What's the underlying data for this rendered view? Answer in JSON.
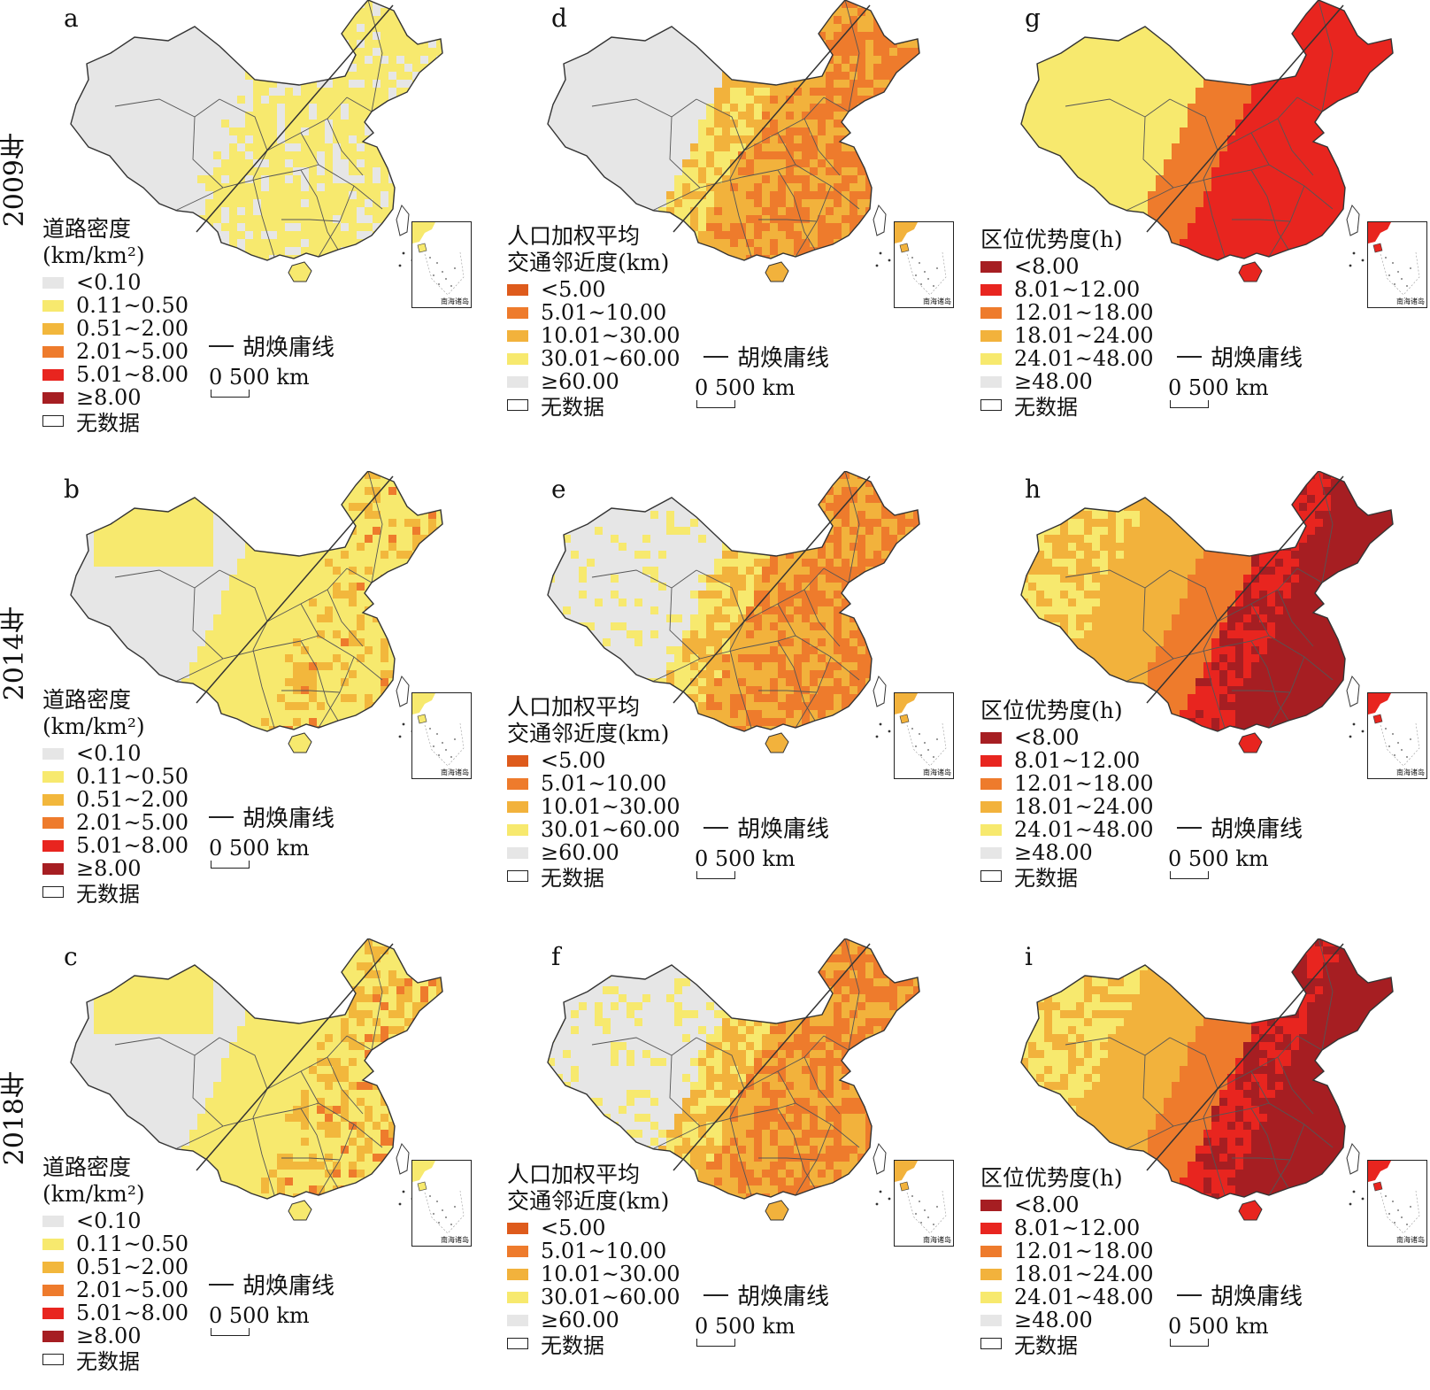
{
  "years": [
    "2009年",
    "2014年",
    "2018年"
  ],
  "inset_caption": "南海诸岛",
  "huline_label": "胡焕庸线",
  "scale": {
    "zero": "0",
    "label": "500 km"
  },
  "nodata_label": "无数据",
  "legends": {
    "road": {
      "title": [
        "道路密度",
        "(km/km²)"
      ],
      "items": [
        "<0.10",
        "0.11~0.50",
        "0.51~2.00",
        "2.01~5.00",
        "5.01~8.00",
        "≥8.00"
      ],
      "colors": [
        "#e6e6e6",
        "#f7e96e",
        "#f2b73c",
        "#ee7b2c",
        "#e8251f",
        "#a61e22"
      ]
    },
    "proximity": {
      "title": [
        "人口加权平均",
        "交通邻近度(km)"
      ],
      "items": [
        "<5.00",
        "5.01~10.00",
        "10.01~30.00",
        "30.01~60.00",
        "≥60.00"
      ],
      "colors": [
        "#de5b1c",
        "#ee7b2c",
        "#f2b23c",
        "#f7e96e",
        "#e6e6e6"
      ]
    },
    "advantage": {
      "title": [
        "区位优势度(h)"
      ],
      "items": [
        "<8.00",
        "8.01~12.00",
        "12.01~18.00",
        "18.01~24.00",
        "24.01~48.00",
        "≥48.00"
      ],
      "colors": [
        "#a61e22",
        "#e8251f",
        "#ee7b2c",
        "#f2b23c",
        "#f7e96e",
        "#e6e6e6"
      ]
    }
  },
  "panels": [
    {
      "letter": "a",
      "type": "road"
    },
    {
      "letter": "d",
      "type": "proximity"
    },
    {
      "letter": "g",
      "type": "advantage"
    },
    {
      "letter": "b",
      "type": "road"
    },
    {
      "letter": "e",
      "type": "proximity"
    },
    {
      "letter": "h",
      "type": "advantage"
    },
    {
      "letter": "c",
      "type": "road"
    },
    {
      "letter": "f",
      "type": "proximity"
    },
    {
      "letter": "i",
      "type": "advantage"
    }
  ]
}
